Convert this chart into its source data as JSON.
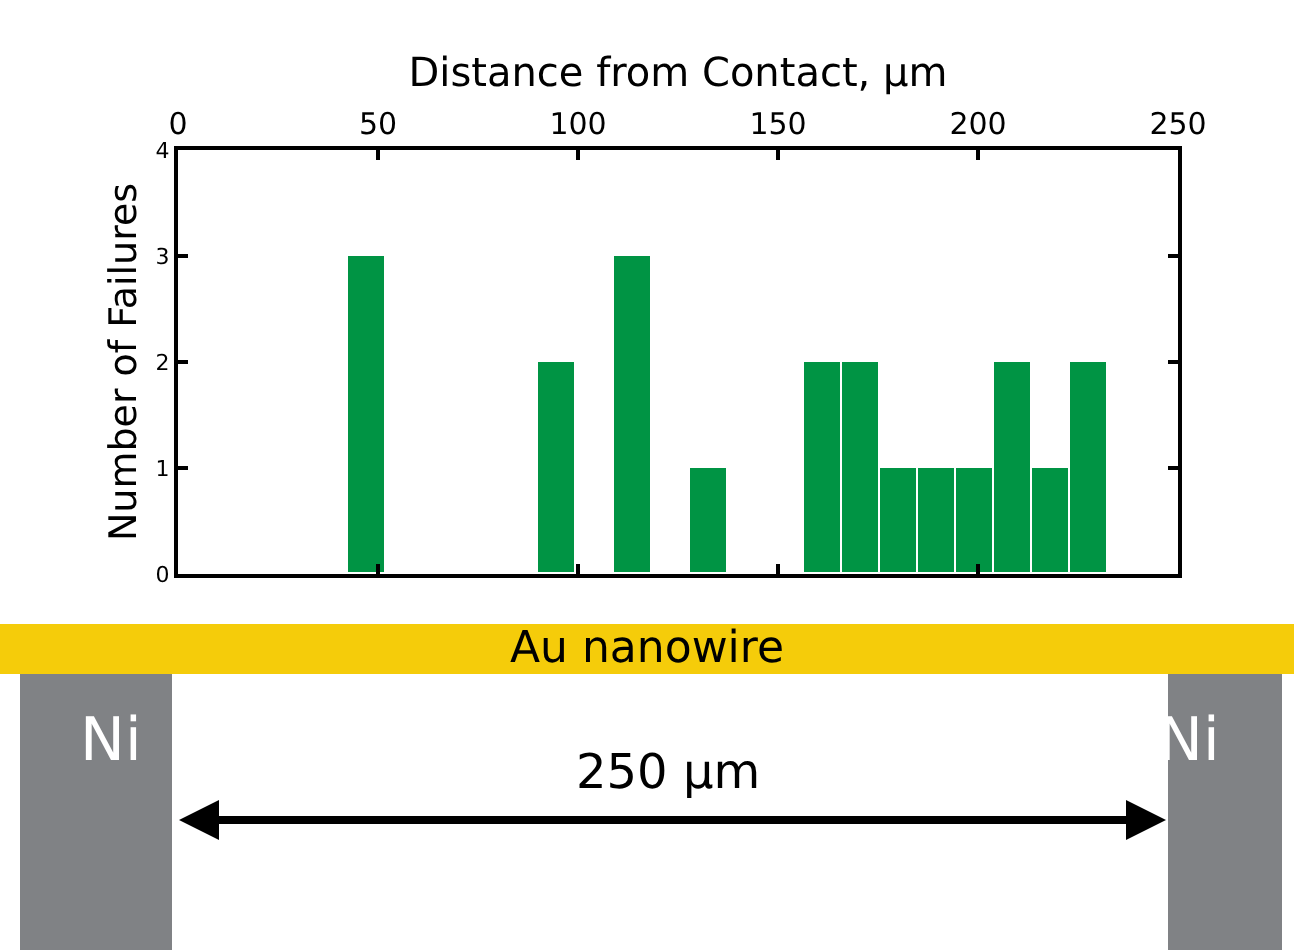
{
  "chart_data": {
    "type": "histogram",
    "xlabel": "Distance from Contact, µm",
    "ylabel": "Number of Failures",
    "bins": [
      42.5,
      52,
      61.5,
      71,
      80.5,
      90,
      99.5,
      109,
      118.5,
      128,
      137.5,
      147,
      156.5,
      166,
      175.5,
      185,
      194.5,
      204,
      213.5,
      223,
      232.5
    ],
    "values": [
      3,
      0,
      0,
      0,
      0,
      2,
      0,
      3,
      0,
      1,
      0,
      0,
      2,
      2,
      1,
      1,
      1,
      2,
      1,
      2
    ],
    "color": "#009444",
    "xlim": [
      0,
      250
    ],
    "xticks": [
      0,
      50,
      100,
      150,
      200,
      250
    ],
    "ylim": [
      0,
      4
    ],
    "yticks": [
      0,
      1,
      2,
      3,
      4
    ],
    "annotations": [
      "Au nanowire",
      "Ni",
      "Ni",
      "250 µm"
    ]
  }
}
